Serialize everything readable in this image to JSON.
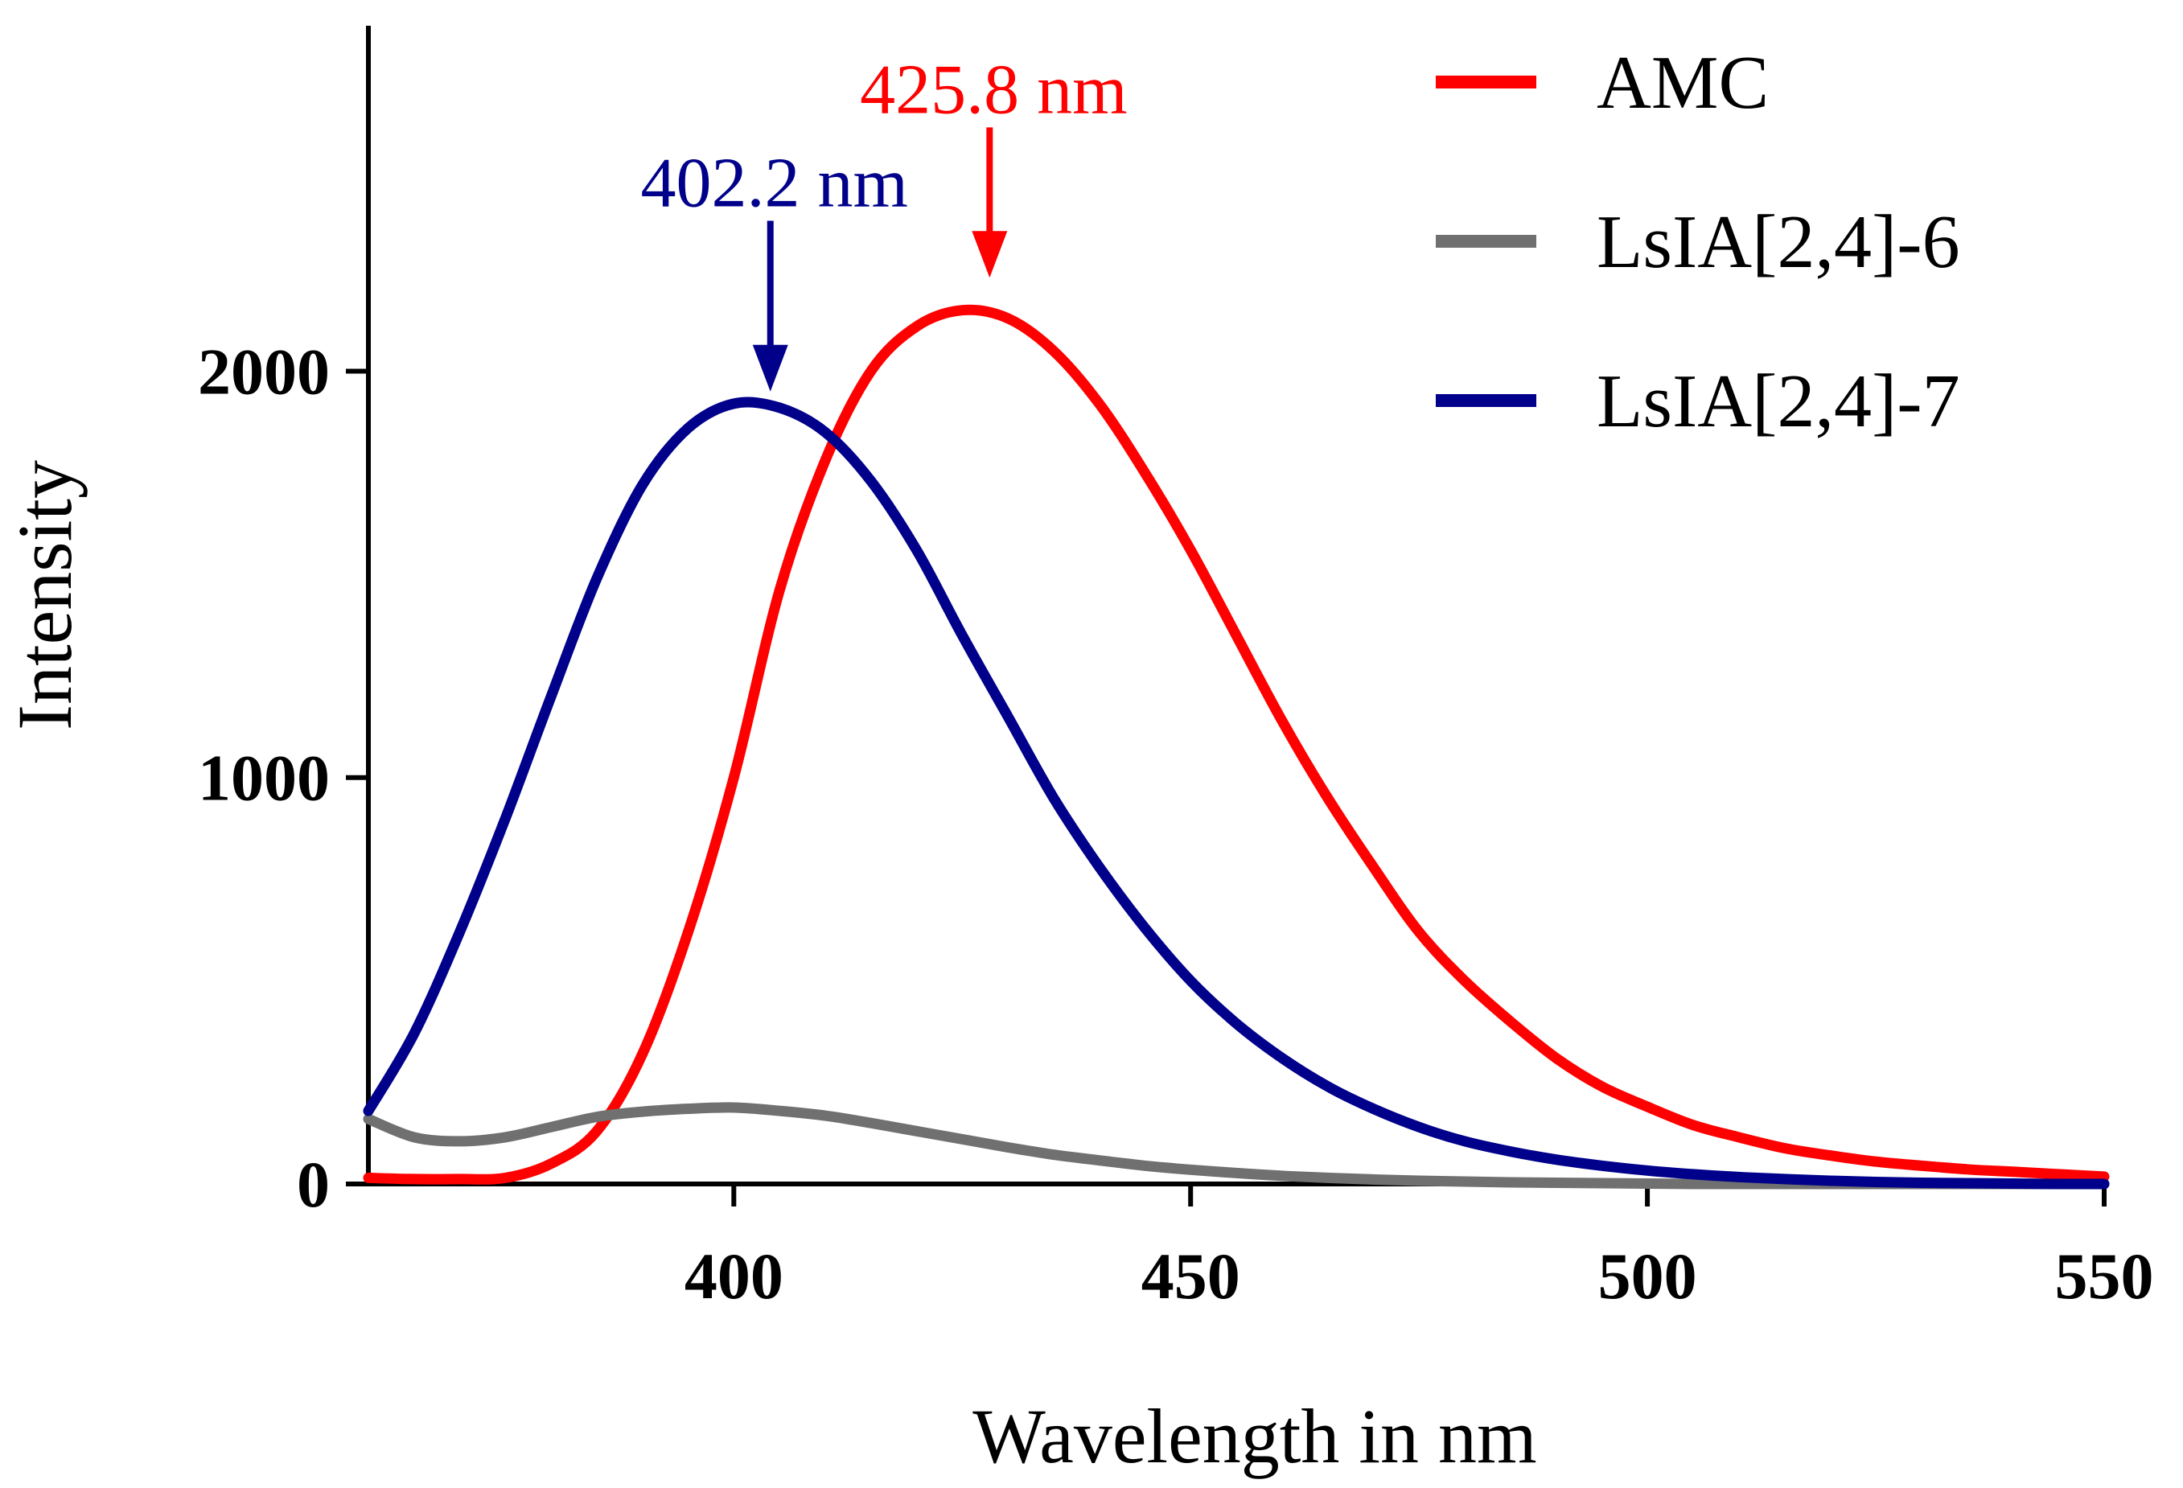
{
  "chart_data": {
    "type": "line",
    "title": "",
    "xlabel": "Wavelength in nm",
    "ylabel": "Intensity",
    "xlim": [
      360,
      550
    ],
    "ylim": [
      0,
      2850
    ],
    "xticks": [
      400,
      450,
      500,
      550
    ],
    "yticks": [
      0,
      1000,
      2000
    ],
    "grid": false,
    "legend_position": "top-right",
    "series": [
      {
        "name": "AMC",
        "color": "#ff0000",
        "x": [
          360,
          365,
          370,
          375,
          380,
          385,
          390,
          395,
          400,
          405,
          410,
          415,
          420,
          425,
          430,
          435,
          440,
          445,
          450,
          455,
          460,
          465,
          470,
          475,
          480,
          485,
          490,
          495,
          500,
          505,
          510,
          515,
          520,
          525,
          530,
          535,
          540,
          545,
          550
        ],
        "y": [
          15,
          12,
          12,
          15,
          50,
          130,
          320,
          620,
          1000,
          1460,
          1780,
          2000,
          2110,
          2150,
          2130,
          2050,
          1920,
          1750,
          1560,
          1350,
          1140,
          950,
          780,
          620,
          500,
          400,
          310,
          240,
          190,
          145,
          115,
          88,
          70,
          55,
          45,
          36,
          30,
          24,
          18
        ]
      },
      {
        "name": "LsIA[2,4]-6",
        "color": "#707070",
        "x": [
          360,
          365,
          370,
          375,
          380,
          385,
          390,
          395,
          400,
          405,
          410,
          415,
          420,
          425,
          430,
          435,
          440,
          445,
          450,
          455,
          460,
          465,
          470,
          475,
          480,
          485,
          490,
          495,
          500,
          505,
          510,
          515,
          520,
          525,
          530,
          535,
          540,
          545,
          550
        ],
        "y": [
          160,
          115,
          105,
          115,
          140,
          165,
          178,
          185,
          188,
          180,
          168,
          150,
          130,
          110,
          90,
          72,
          58,
          45,
          35,
          27,
          20,
          15,
          11,
          8,
          6,
          4,
          3,
          2,
          1,
          0,
          0,
          0,
          0,
          0,
          0,
          0,
          0,
          0,
          0
        ]
      },
      {
        "name": "LsIA[2,4]-7",
        "color": "#00008b",
        "x": [
          360,
          365,
          370,
          375,
          380,
          385,
          390,
          395,
          400,
          405,
          410,
          415,
          420,
          425,
          430,
          435,
          440,
          445,
          450,
          455,
          460,
          465,
          470,
          475,
          480,
          485,
          490,
          495,
          500,
          505,
          510,
          515,
          520,
          525,
          530,
          535,
          540,
          545,
          550
        ],
        "y": [
          180,
          370,
          620,
          900,
          1200,
          1490,
          1720,
          1860,
          1920,
          1910,
          1850,
          1730,
          1560,
          1350,
          1150,
          950,
          780,
          630,
          500,
          395,
          310,
          240,
          185,
          140,
          105,
          80,
          60,
          45,
          33,
          24,
          17,
          12,
          8,
          5,
          3,
          2,
          1,
          0,
          0
        ]
      }
    ],
    "annotations": [
      {
        "text": "402.2 nm",
        "x": 404,
        "y_from": 2370,
        "y_to": 1950,
        "color": "#00008b"
      },
      {
        "text": "425.8 nm",
        "x": 428,
        "y_from": 2600,
        "y_to": 2230,
        "color": "#ff0000"
      }
    ]
  }
}
